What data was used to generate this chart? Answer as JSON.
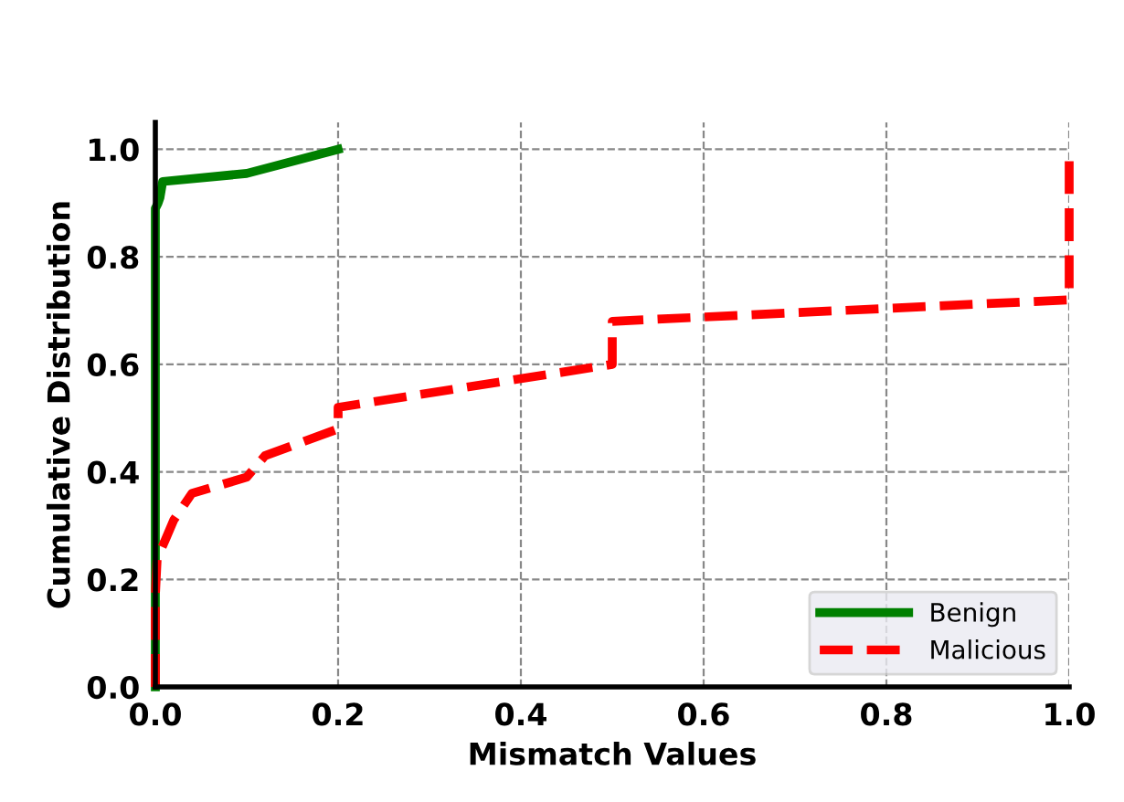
{
  "chart_data": {
    "type": "line",
    "xlabel": "Mismatch Values",
    "ylabel": "Cumulative Distribution",
    "xlim": [
      0,
      1
    ],
    "ylim": [
      0,
      1.05
    ],
    "xticks": [
      {
        "value": 0,
        "label": "0.0"
      },
      0.2,
      0.4,
      0.6,
      0.8,
      {
        "value": 1,
        "label": "1.0"
      }
    ],
    "yticks": [
      {
        "value": 0,
        "label": "0.0"
      },
      0.2,
      0.4,
      0.6,
      0.8,
      {
        "value": 1,
        "label": "1.0"
      }
    ],
    "grid": true,
    "legend": "bottom right",
    "series": [
      {
        "name": "Benign",
        "color": "#008000",
        "line_style": "solid",
        "x": [
          0,
          0,
          0.003,
          0.005,
          0.008,
          0.1,
          0.2
        ],
        "values": [
          0,
          0.89,
          0.9,
          0.91,
          0.94,
          0.955,
          1.0
        ]
      },
      {
        "name": "Malicious",
        "color": "#ff0000",
        "line_style": "dashed",
        "x": [
          0,
          0,
          0.002,
          0.01,
          0.02,
          0.04,
          0.1,
          0.12,
          0.2,
          0.2,
          0.5,
          0.5,
          1.0,
          1.0
        ],
        "values": [
          0,
          0.17,
          0.24,
          0.27,
          0.31,
          0.36,
          0.39,
          0.43,
          0.48,
          0.52,
          0.6,
          0.68,
          0.72,
          1.0
        ]
      }
    ]
  }
}
